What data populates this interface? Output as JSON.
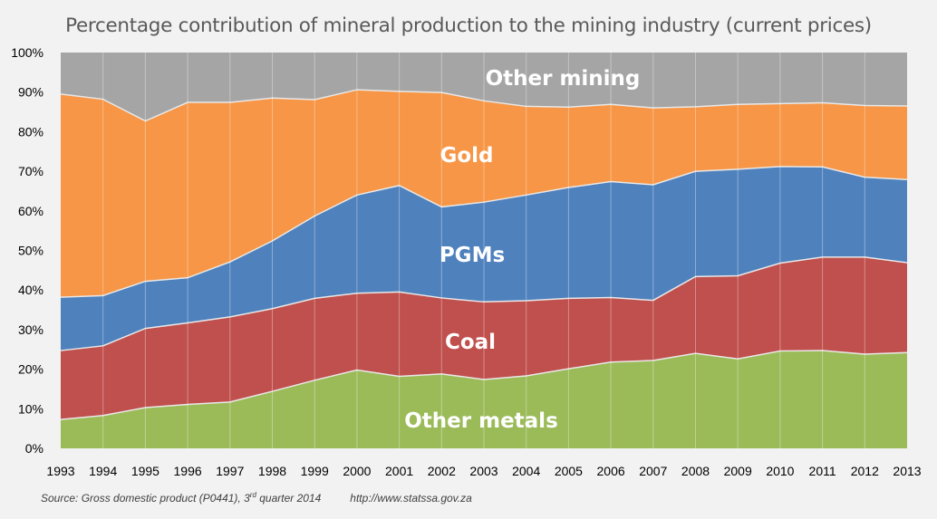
{
  "chart_data": {
    "type": "area",
    "stacked": true,
    "title": "Percentage contribution of mineral production to the mining industry (current prices)",
    "xlabel": "",
    "ylabel": "",
    "ylim": [
      0,
      100
    ],
    "y_ticks": [
      "0%",
      "10%",
      "20%",
      "30%",
      "40%",
      "50%",
      "60%",
      "70%",
      "80%",
      "90%",
      "100%"
    ],
    "categories": [
      "1993",
      "1994",
      "1995",
      "1996",
      "1997",
      "1998",
      "1999",
      "2000",
      "2001",
      "2002",
      "2003",
      "2004",
      "2005",
      "2006",
      "2007",
      "2008",
      "2009",
      "2010",
      "2011",
      "2012",
      "2013"
    ],
    "grid": "vertical",
    "legend": "inline labels",
    "series": [
      {
        "name": "Other metals",
        "color": "#9bbb59",
        "values": [
          7.3,
          8.3,
          10.3,
          11.1,
          11.7,
          14.4,
          17.2,
          19.8,
          18.2,
          18.8,
          17.4,
          18.3,
          20.1,
          21.8,
          22.2,
          24.0,
          22.6,
          24.6,
          24.7,
          23.8,
          24.2
        ]
      },
      {
        "name": "Coal",
        "color": "#c0504d",
        "values": [
          17.4,
          17.6,
          20.0,
          20.6,
          21.5,
          20.9,
          20.7,
          19.4,
          21.3,
          19.2,
          19.6,
          19.0,
          17.8,
          16.3,
          15.2,
          19.4,
          21.0,
          22.2,
          23.6,
          24.5,
          22.7
        ]
      },
      {
        "name": "PGMs",
        "color": "#4f81bd",
        "values": [
          13.5,
          12.7,
          11.9,
          11.4,
          13.9,
          17.1,
          20.8,
          24.8,
          26.9,
          23.0,
          25.2,
          26.7,
          28.0,
          29.3,
          29.2,
          26.6,
          26.9,
          24.4,
          22.8,
          20.2,
          21.0
        ]
      },
      {
        "name": "Gold",
        "color": "#f79646",
        "values": [
          51.3,
          49.6,
          40.5,
          44.3,
          40.3,
          36.1,
          29.4,
          26.6,
          23.8,
          28.9,
          25.6,
          22.4,
          20.3,
          19.5,
          19.4,
          16.3,
          16.4,
          15.9,
          16.2,
          18.1,
          18.6
        ]
      },
      {
        "name": "Other mining",
        "color": "#a5a5a5",
        "values": [
          10.5,
          11.8,
          17.3,
          12.6,
          12.6,
          11.5,
          11.9,
          9.4,
          9.8,
          10.1,
          12.2,
          13.6,
          13.8,
          13.1,
          14.0,
          13.7,
          13.1,
          12.9,
          12.7,
          13.4,
          13.5
        ]
      }
    ]
  },
  "source": {
    "prefix": "Source: Gross domestic product (P0441), 3",
    "sup": "rd",
    "suffix": " quarter 2014",
    "url": "http://www.statssa.gov.za"
  }
}
